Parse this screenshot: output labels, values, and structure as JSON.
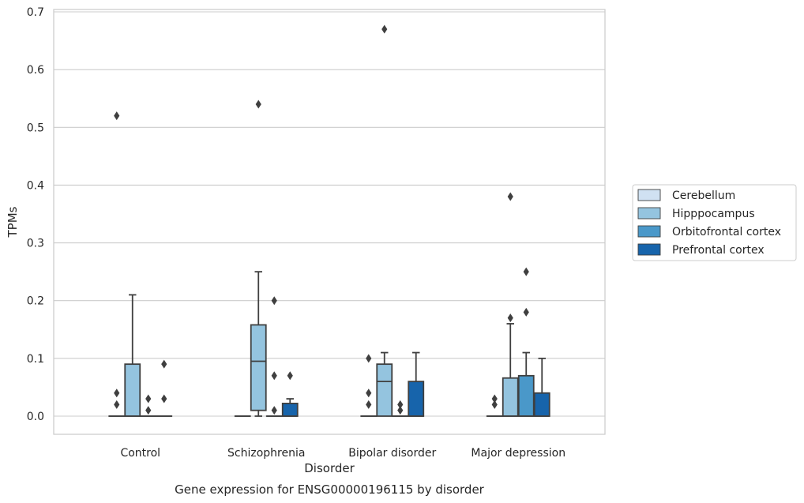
{
  "chart_data": {
    "type": "box",
    "title": "",
    "caption": "Gene expression for ENSG00000196115 by disorder",
    "xlabel": "Disorder",
    "ylabel": "TPMs",
    "ylim": [
      -0.03,
      0.705
    ],
    "yticks": [
      0.0,
      0.1,
      0.2,
      0.3,
      0.4,
      0.5,
      0.6,
      0.7
    ],
    "ytick_labels": [
      "0.0",
      "0.1",
      "0.2",
      "0.3",
      "0.4",
      "0.5",
      "0.6",
      "0.7"
    ],
    "grid": "horizontal",
    "legend_position": "right",
    "categories": [
      "Control",
      "Schizophrenia",
      "Bipolar disorder",
      "Major depression"
    ],
    "series": [
      {
        "name": "Cerebellum",
        "color": "#d0e1f2",
        "boxes": [
          {
            "q1": 0,
            "median": 0,
            "q3": 0,
            "whisker_low": 0,
            "whisker_high": 0,
            "outliers": [
              0.02,
              0.04,
              0.52
            ]
          },
          {
            "q1": 0,
            "median": 0,
            "q3": 0,
            "whisker_low": 0,
            "whisker_high": 0,
            "outliers": []
          },
          {
            "q1": 0,
            "median": 0,
            "q3": 0,
            "whisker_low": 0,
            "whisker_high": 0,
            "outliers": [
              0.02,
              0.04,
              0.1
            ]
          },
          {
            "q1": 0,
            "median": 0,
            "q3": 0,
            "whisker_low": 0,
            "whisker_high": 0,
            "outliers": [
              0.02,
              0.03
            ]
          }
        ]
      },
      {
        "name": "Hipppocampus",
        "color": "#94c4df",
        "boxes": [
          {
            "q1": 0,
            "median": 0,
            "q3": 0.09,
            "whisker_low": 0,
            "whisker_high": 0.21,
            "outliers": []
          },
          {
            "q1": 0.01,
            "median": 0.095,
            "q3": 0.158,
            "whisker_low": 0,
            "whisker_high": 0.25,
            "outliers": [
              0.54
            ]
          },
          {
            "q1": 0,
            "median": 0.06,
            "q3": 0.09,
            "whisker_low": 0,
            "whisker_high": 0.11,
            "outliers": [
              0.67
            ]
          },
          {
            "q1": 0,
            "median": 0,
            "q3": 0.066,
            "whisker_low": 0,
            "whisker_high": 0.16,
            "outliers": [
              0.17,
              0.38
            ]
          }
        ]
      },
      {
        "name": "Orbitofrontal cortex",
        "color": "#4a98c9",
        "boxes": [
          {
            "q1": 0,
            "median": 0,
            "q3": 0,
            "whisker_low": 0,
            "whisker_high": 0,
            "outliers": [
              0.01,
              0.03
            ]
          },
          {
            "q1": 0,
            "median": 0,
            "q3": 0,
            "whisker_low": 0,
            "whisker_high": 0,
            "outliers": [
              0.01,
              0.07,
              0.2
            ]
          },
          {
            "q1": 0,
            "median": 0,
            "q3": 0,
            "whisker_low": 0,
            "whisker_high": 0,
            "outliers": [
              0.01,
              0.02
            ]
          },
          {
            "q1": 0,
            "median": 0,
            "q3": 0.07,
            "whisker_low": 0,
            "whisker_high": 0.11,
            "outliers": [
              0.18,
              0.25
            ]
          }
        ]
      },
      {
        "name": "Prefrontal cortex",
        "color": "#1764ab",
        "boxes": [
          {
            "q1": 0,
            "median": 0,
            "q3": 0,
            "whisker_low": 0,
            "whisker_high": 0,
            "outliers": [
              0.03,
              0.09
            ]
          },
          {
            "q1": 0,
            "median": 0,
            "q3": 0.022,
            "whisker_low": 0,
            "whisker_high": 0.03,
            "outliers": [
              0.07
            ]
          },
          {
            "q1": 0,
            "median": 0,
            "q3": 0.06,
            "whisker_low": 0,
            "whisker_high": 0.11,
            "outliers": []
          },
          {
            "q1": 0,
            "median": 0,
            "q3": 0.04,
            "whisker_low": 0,
            "whisker_high": 0.1,
            "outliers": []
          }
        ]
      }
    ]
  }
}
